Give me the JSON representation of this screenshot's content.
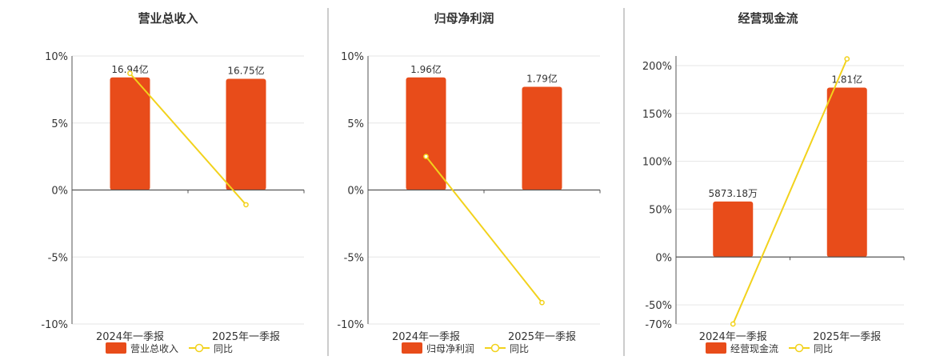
{
  "colors": {
    "bar": "#e84c1a",
    "line": "#f2d21c",
    "axis": "#555555",
    "grid": "#e6e6e6",
    "divider": "#999999"
  },
  "legend_yoy": "同比",
  "chart_data": [
    {
      "type": "bar",
      "title": "营业总收入",
      "categories": [
        "2024年一季报",
        "2025年一季报"
      ],
      "series": [
        {
          "name": "营业总收入",
          "type": "bar",
          "values": [
            8.4,
            8.3
          ],
          "labels": [
            "16.94亿",
            "16.75亿"
          ]
        },
        {
          "name": "同比",
          "type": "line",
          "values": [
            8.7,
            -1.1
          ]
        }
      ],
      "ylim": [
        -10,
        10
      ],
      "yticks": [
        -10,
        -5,
        0,
        5,
        10
      ],
      "ytick_labels": [
        "-10%",
        "-5%",
        "0%",
        "5%",
        "10%"
      ],
      "legend": "bottom"
    },
    {
      "type": "bar",
      "title": "归母净利润",
      "categories": [
        "2024年一季报",
        "2025年一季报"
      ],
      "series": [
        {
          "name": "归母净利润",
          "type": "bar",
          "values": [
            8.4,
            7.7
          ],
          "labels": [
            "1.96亿",
            "1.79亿"
          ]
        },
        {
          "name": "同比",
          "type": "line",
          "values": [
            2.5,
            -8.4
          ]
        }
      ],
      "ylim": [
        -10,
        10
      ],
      "yticks": [
        -10,
        -5,
        0,
        5,
        10
      ],
      "ytick_labels": [
        "-10%",
        "-5%",
        "0%",
        "5%",
        "10%"
      ],
      "legend": "bottom"
    },
    {
      "type": "bar",
      "title": "经营现金流",
      "categories": [
        "2024年一季报",
        "2025年一季报"
      ],
      "series": [
        {
          "name": "经营现金流",
          "type": "bar",
          "values": [
            58,
            177
          ],
          "labels": [
            "5873.18万",
            "1.81亿"
          ]
        },
        {
          "name": "同比",
          "type": "line",
          "values": [
            -70,
            207
          ]
        }
      ],
      "ylim": [
        -70,
        210
      ],
      "yticks": [
        -70,
        -50,
        0,
        50,
        100,
        150,
        200
      ],
      "ytick_labels": [
        "-70%",
        "-50%",
        "0%",
        "50%",
        "100%",
        "150%",
        "200%"
      ],
      "legend": "bottom"
    }
  ]
}
